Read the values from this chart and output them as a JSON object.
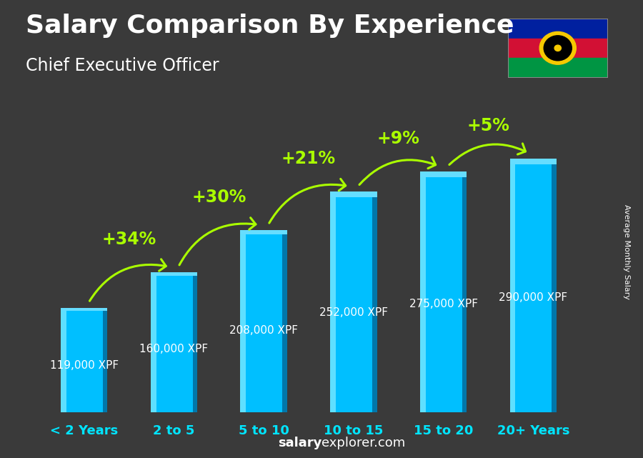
{
  "title": "Salary Comparison By Experience",
  "subtitle": "Chief Executive Officer",
  "categories": [
    "< 2 Years",
    "2 to 5",
    "5 to 10",
    "10 to 15",
    "15 to 20",
    "20+ Years"
  ],
  "values": [
    119000,
    160000,
    208000,
    252000,
    275000,
    290000
  ],
  "labels": [
    "119,000 XPF",
    "160,000 XPF",
    "208,000 XPF",
    "252,000 XPF",
    "275,000 XPF",
    "290,000 XPF"
  ],
  "pct_changes": [
    "+34%",
    "+30%",
    "+21%",
    "+9%",
    "+5%"
  ],
  "pct_color": "#aaff00",
  "xlabel_color": "#00e5ff",
  "label_color": "white",
  "ymax": 340000,
  "title_fontsize": 26,
  "subtitle_fontsize": 17,
  "cat_fontsize": 13,
  "val_fontsize": 11,
  "pct_fontsize": 17,
  "side_label": "Average Monthly Salary",
  "footer_salary": "salary",
  "footer_rest": "explorer.com",
  "flag_colors": [
    "#00209F",
    "#D21034",
    "#009543"
  ],
  "bg_color": "#3a3a3a"
}
